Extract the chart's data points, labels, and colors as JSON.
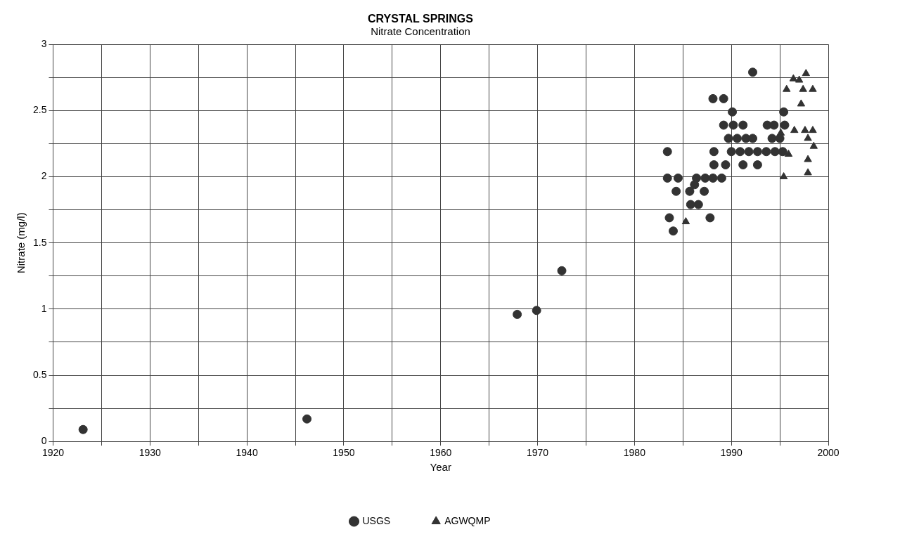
{
  "chart_data": {
    "type": "scatter",
    "title": "CRYSTAL SPRINGS",
    "subtitle": "Nitrate Concentration",
    "xlabel": "Year",
    "ylabel": "Nitrate (mg/l)",
    "xlim": [
      1920,
      2000
    ],
    "xticks": [
      1920,
      {
        "value": 1925,
        "label": null
      },
      1930,
      {
        "value": 1935,
        "label": null
      },
      1940,
      {
        "value": 1945,
        "label": null
      },
      1950,
      {
        "value": 1955,
        "label": null
      },
      1960,
      {
        "value": 1965,
        "label": null
      },
      1970,
      {
        "value": 1975,
        "label": null
      },
      1980,
      {
        "value": 1985,
        "label": null
      },
      1990,
      {
        "value": 1995,
        "label": null
      },
      2000
    ],
    "ylim": [
      0,
      3
    ],
    "yticks": [
      0,
      {
        "value": 0.25,
        "label": null
      },
      0.5,
      {
        "value": 0.75,
        "label": null
      },
      1,
      {
        "value": 1.25,
        "label": null
      },
      1.5,
      {
        "value": 1.75,
        "label": null
      },
      2,
      {
        "value": 2.25,
        "label": null
      },
      2.5,
      {
        "value": 2.75,
        "label": null
      },
      3
    ],
    "grid": true,
    "legend": "bottom",
    "series": [
      {
        "name": "USGS",
        "color": "#333333",
        "marker": "circle",
        "x": [
          1923.1,
          1946.2,
          1967.9,
          1969.9,
          1972.5,
          1992.2,
          1988.1,
          1989.2,
          1990.1,
          1995.4,
          1989.2,
          1990.2,
          1991.2,
          1993.7,
          1994.4,
          1995.5,
          1989.7,
          1990.6,
          1991.5,
          1992.2,
          1994.2,
          1995.0,
          1983.4,
          1988.2,
          1990.0,
          1990.9,
          1991.8,
          1992.7,
          1993.6,
          1994.5,
          1995.3,
          1988.2,
          1989.4,
          1991.2,
          1992.7,
          1983.4,
          1984.5,
          1986.4,
          1987.3,
          1988.1,
          1989.0,
          1986.2,
          1984.3,
          1985.7,
          1987.2,
          1985.8,
          1986.6,
          1983.6,
          1987.8,
          1984.0
        ],
        "values": [
          0.09,
          0.17,
          0.96,
          0.99,
          1.29,
          2.79,
          2.59,
          2.59,
          2.49,
          2.49,
          2.39,
          2.39,
          2.39,
          2.39,
          2.39,
          2.39,
          2.29,
          2.29,
          2.29,
          2.29,
          2.29,
          2.29,
          2.19,
          2.19,
          2.19,
          2.19,
          2.19,
          2.19,
          2.19,
          2.19,
          2.19,
          2.09,
          2.09,
          2.09,
          2.09,
          1.99,
          1.99,
          1.99,
          1.99,
          1.99,
          1.99,
          1.94,
          1.89,
          1.89,
          1.89,
          1.79,
          1.79,
          1.69,
          1.69,
          1.59
        ]
      },
      {
        "name": "AGWQMP",
        "color": "#333333",
        "marker": "triangle",
        "x": [
          1997.7,
          1996.4,
          1997.0,
          1995.7,
          1997.4,
          1998.4,
          1997.2,
          1996.5,
          1997.6,
          1998.4,
          1995.1,
          1997.9,
          1998.5,
          1995.9,
          1997.9,
          1995.4,
          1997.9,
          1985.3
        ],
        "values": [
          2.78,
          2.74,
          2.73,
          2.66,
          2.66,
          2.66,
          2.55,
          2.35,
          2.35,
          2.35,
          2.33,
          2.29,
          2.23,
          2.17,
          2.13,
          2.0,
          2.03,
          1.66
        ]
      }
    ]
  }
}
